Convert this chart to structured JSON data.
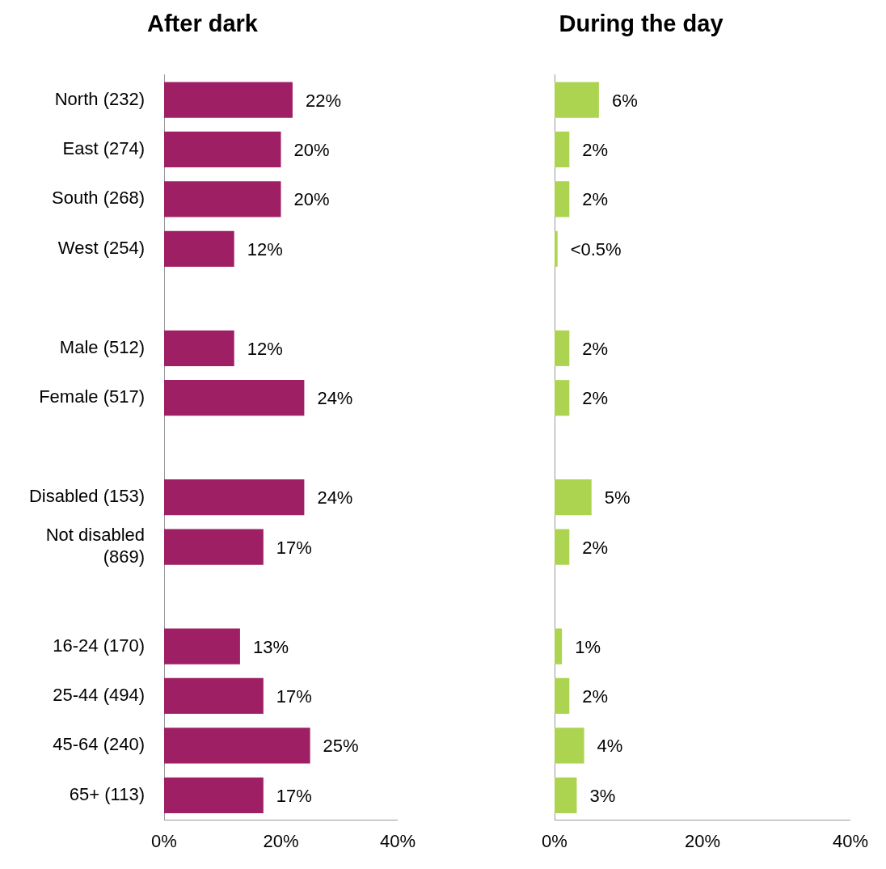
{
  "chart_data": [
    {
      "type": "bar",
      "orientation": "horizontal",
      "title": "After dark",
      "categories": [
        "North (232)",
        "East (274)",
        "South (268)",
        "West (254)",
        null,
        "Male (512)",
        "Female (517)",
        null,
        "Disabled (153)",
        "Not disabled (869)",
        null,
        "16-24 (170)",
        "25-44 (494)",
        "45-64 (240)",
        "65+ (113)"
      ],
      "values": [
        22,
        20,
        20,
        12,
        null,
        12,
        24,
        null,
        24,
        17,
        null,
        13,
        17,
        25,
        17
      ],
      "value_labels": [
        "22%",
        "20%",
        "20%",
        "12%",
        null,
        "12%",
        "24%",
        null,
        "24%",
        "17%",
        null,
        "13%",
        "17%",
        "25%",
        "17%"
      ],
      "color": "#9e1f63",
      "xlim": [
        0,
        40
      ],
      "xticks": [
        {
          "value": 0,
          "label": "0%"
        },
        {
          "value": 20,
          "label": "20%"
        },
        {
          "value": 40,
          "label": "40%"
        }
      ]
    },
    {
      "type": "bar",
      "orientation": "horizontal",
      "title": "During the day",
      "categories": [
        null,
        null,
        null,
        null,
        null,
        null,
        null,
        null,
        null,
        null,
        null,
        null,
        null,
        null,
        null
      ],
      "values": [
        6,
        2,
        2,
        0.4,
        null,
        2,
        2,
        null,
        5,
        2,
        null,
        1,
        2,
        4,
        3
      ],
      "value_labels": [
        "6%",
        "2%",
        "2%",
        "<0.5%",
        null,
        "2%",
        "2%",
        null,
        "5%",
        "2%",
        null,
        "1%",
        "2%",
        "4%",
        "3%"
      ],
      "color": "#add451",
      "xlim": [
        0,
        40
      ],
      "xticks": [
        {
          "value": 0,
          "label": "0%"
        },
        {
          "value": 20,
          "label": "20%"
        },
        {
          "value": 40,
          "label": "40%"
        }
      ],
      "tick_labels": "x"
    }
  ]
}
